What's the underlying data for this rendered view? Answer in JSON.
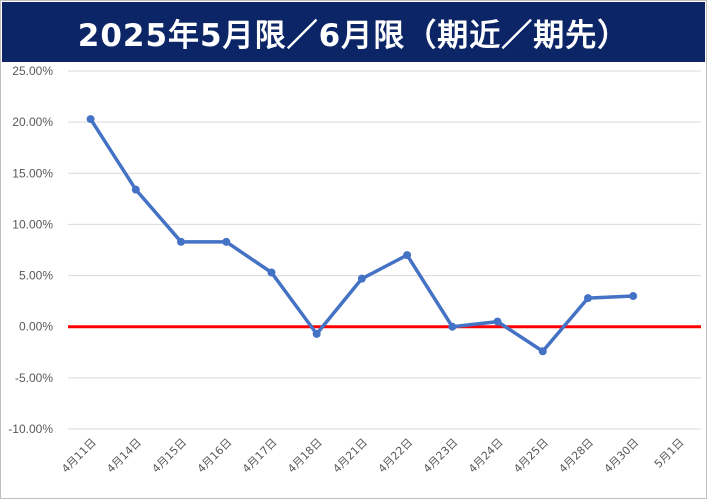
{
  "header": {
    "title": "2025年5月限／6月限（期近／期先）"
  },
  "colors": {
    "title_bg": "#0b2566",
    "series": "#4472c4",
    "baseline": "#ff0000",
    "grid": "#d9d9d9"
  },
  "chart_data": {
    "type": "line",
    "title": "2025年5月限／6月限（期近／期先）",
    "categories": [
      "4月11日",
      "4月14日",
      "4月15日",
      "4月16日",
      "4月17日",
      "4月18日",
      "4月21日",
      "4月22日",
      "4月23日",
      "4月24日",
      "4月25日",
      "4月28日",
      "4月30日",
      "5月1日"
    ],
    "series": [
      {
        "values": [
          20.3,
          13.4,
          8.3,
          8.3,
          5.3,
          -0.7,
          4.7,
          7.0,
          0.0,
          0.5,
          -2.4,
          2.8,
          3.0,
          null
        ]
      }
    ],
    "baseline": 0,
    "ylim": [
      -10,
      25
    ],
    "yticks": [
      25,
      20,
      15,
      10,
      5,
      0,
      -5,
      -10
    ],
    "ytick_labels": [
      "25.00%",
      "20.00%",
      "15.00%",
      "10.00%",
      "5.00%",
      "0.00%",
      "-5.00%",
      "-10.00%"
    ],
    "grid": true,
    "legend": "none"
  }
}
